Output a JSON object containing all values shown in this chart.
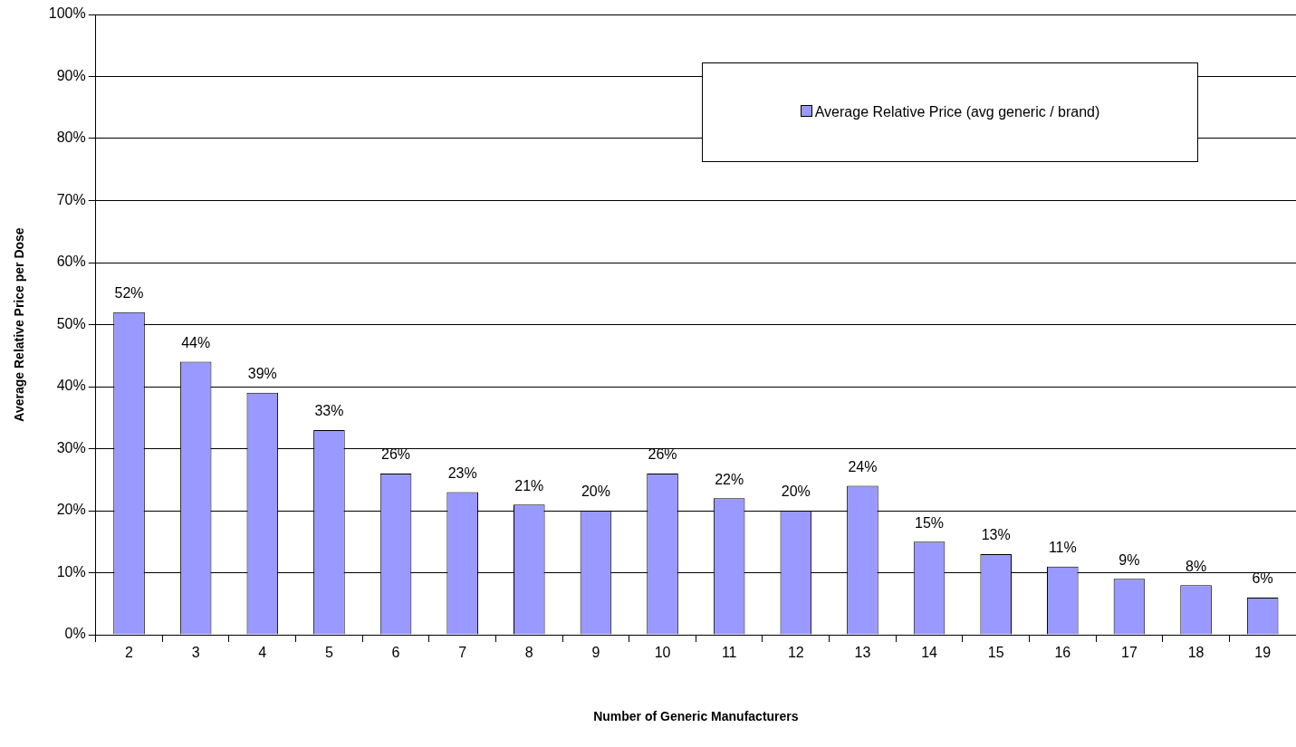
{
  "chart_data": {
    "type": "bar",
    "xlabel": "Number of Generic Manufacturers",
    "ylabel": "Average Relative Price per Dose",
    "categories": [
      "2",
      "3",
      "4",
      "5",
      "6",
      "7",
      "8",
      "9",
      "10",
      "11",
      "12",
      "13",
      "14",
      "15",
      "16",
      "17",
      "18",
      "19"
    ],
    "series": [
      {
        "name": "Average Relative Price (avg generic / brand)",
        "color": "#9999ff",
        "values": [
          52,
          44,
          39,
          33,
          26,
          23,
          21,
          20,
          26,
          22,
          20,
          24,
          15,
          13,
          11,
          9,
          8,
          6
        ]
      }
    ],
    "ylim": [
      0,
      100
    ],
    "yticks": [
      {
        "value": 0,
        "label": "0%"
      },
      {
        "value": 10,
        "label": "10%"
      },
      {
        "value": 20,
        "label": "20%"
      },
      {
        "value": 30,
        "label": "30%"
      },
      {
        "value": 40,
        "label": "40%"
      },
      {
        "value": 50,
        "label": "50%"
      },
      {
        "value": 60,
        "label": "60%"
      },
      {
        "value": 70,
        "label": "70%"
      },
      {
        "value": 80,
        "label": "80%"
      },
      {
        "value": 90,
        "label": "90%"
      },
      {
        "value": 100,
        "label": "100%"
      }
    ],
    "value_labels": [
      "52%",
      "44%",
      "39%",
      "33%",
      "26%",
      "23%",
      "21%",
      "20%",
      "26%",
      "22%",
      "20%",
      "24%",
      "15%",
      "13%",
      "11%",
      "9%",
      "8%",
      "6%"
    ],
    "grid": "y",
    "legend": "top right"
  }
}
